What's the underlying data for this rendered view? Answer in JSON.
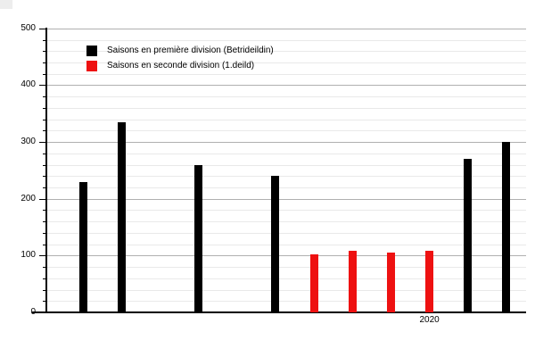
{
  "chart_data": {
    "type": "bar",
    "title": "",
    "xlabel": "",
    "ylabel": "",
    "ylim": [
      0,
      500
    ],
    "y_major_tick_step": 100,
    "y_minor_tick_step": 20,
    "y_tick_labels": [
      "0",
      "100",
      "200",
      "300",
      "400",
      "500"
    ],
    "grid": true,
    "legend_position": "top-left",
    "x_axis": {
      "total_slots": 12,
      "visible_tick_labels": [
        {
          "label": "2020",
          "slot": 10
        }
      ]
    },
    "series": [
      {
        "name": "Saisons en première division (Betrideildin)",
        "color": "#000000",
        "points": [
          {
            "slot": 1,
            "value": 230
          },
          {
            "slot": 2,
            "value": 335
          },
          {
            "slot": 4,
            "value": 260
          },
          {
            "slot": 6,
            "value": 240
          },
          {
            "slot": 11,
            "value": 270
          },
          {
            "slot": 12,
            "value": 300
          }
        ]
      },
      {
        "name": "Saisons en seconde division (1.deild)",
        "color": "#ee1111",
        "points": [
          {
            "slot": 7,
            "value": 102
          },
          {
            "slot": 8,
            "value": 108
          },
          {
            "slot": 9,
            "value": 105
          },
          {
            "slot": 10,
            "value": 108
          }
        ]
      }
    ],
    "colors": {
      "background": "#ffffff",
      "axis": "#000000",
      "text": "#000000",
      "major_gridline": "#b0b0b0",
      "minor_gridline": "#e9e9e9",
      "corner_artifact": "#ededed"
    }
  }
}
